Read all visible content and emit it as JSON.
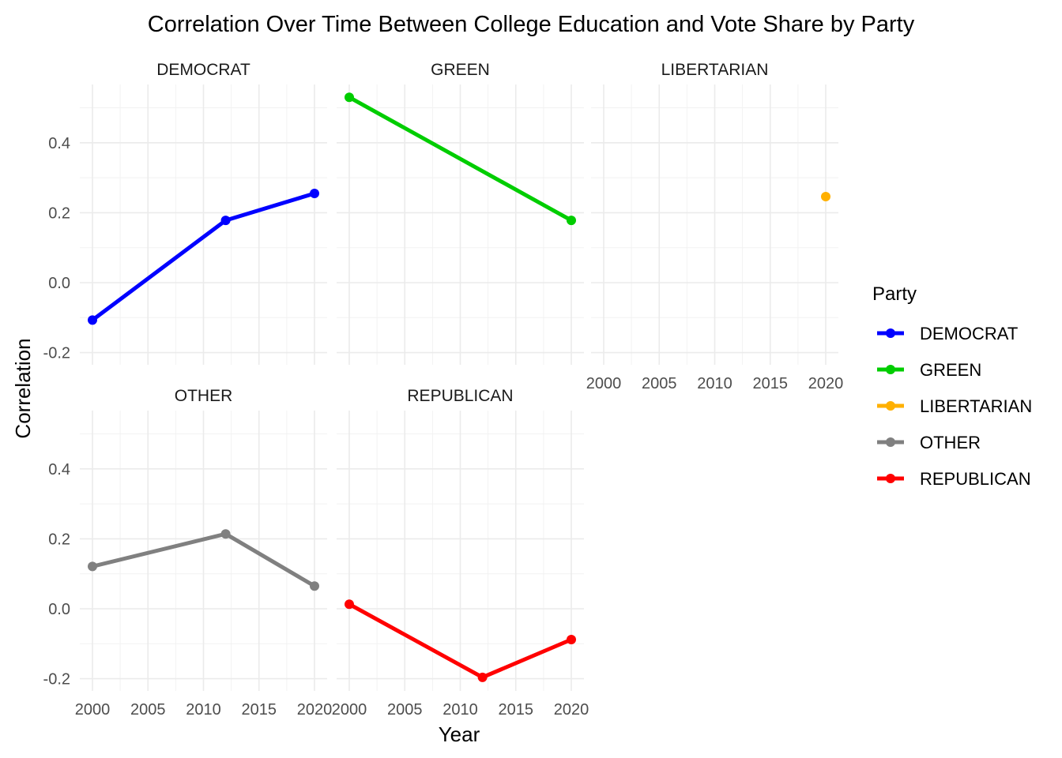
{
  "chart_data": {
    "type": "line",
    "title": "Correlation Over Time Between College Education and Vote Share by Party",
    "xlabel": "Year",
    "ylabel": "Correlation",
    "xlim": [
      2000,
      2020
    ],
    "ylim": [
      -0.2,
      0.5
    ],
    "x_ticks": [
      "2000",
      "2005",
      "2010",
      "2015",
      "2020"
    ],
    "y_ticks": [
      "-0.2",
      "0.0",
      "0.2",
      "0.4"
    ],
    "grid": true,
    "legend_position": "right",
    "legend_title": "Party",
    "series": [
      {
        "name": "DEMOCRAT",
        "color": "#0000ff",
        "points": [
          [
            2000,
            -0.107
          ],
          [
            2012,
            0.178
          ],
          [
            2020,
            0.255
          ]
        ]
      },
      {
        "name": "GREEN",
        "color": "#00cd00",
        "points": [
          [
            2000,
            0.53
          ],
          [
            2020,
            0.178
          ]
        ]
      },
      {
        "name": "LIBERTARIAN",
        "color": "#ffb000",
        "points": [
          [
            2020,
            0.246
          ]
        ]
      },
      {
        "name": "OTHER",
        "color": "#808080",
        "points": [
          [
            2000,
            0.121
          ],
          [
            2012,
            0.214
          ],
          [
            2020,
            0.065
          ]
        ]
      },
      {
        "name": "REPUBLICAN",
        "color": "#ff0000",
        "points": [
          [
            2000,
            0.013
          ],
          [
            2012,
            -0.196
          ],
          [
            2020,
            -0.088
          ]
        ]
      }
    ]
  }
}
